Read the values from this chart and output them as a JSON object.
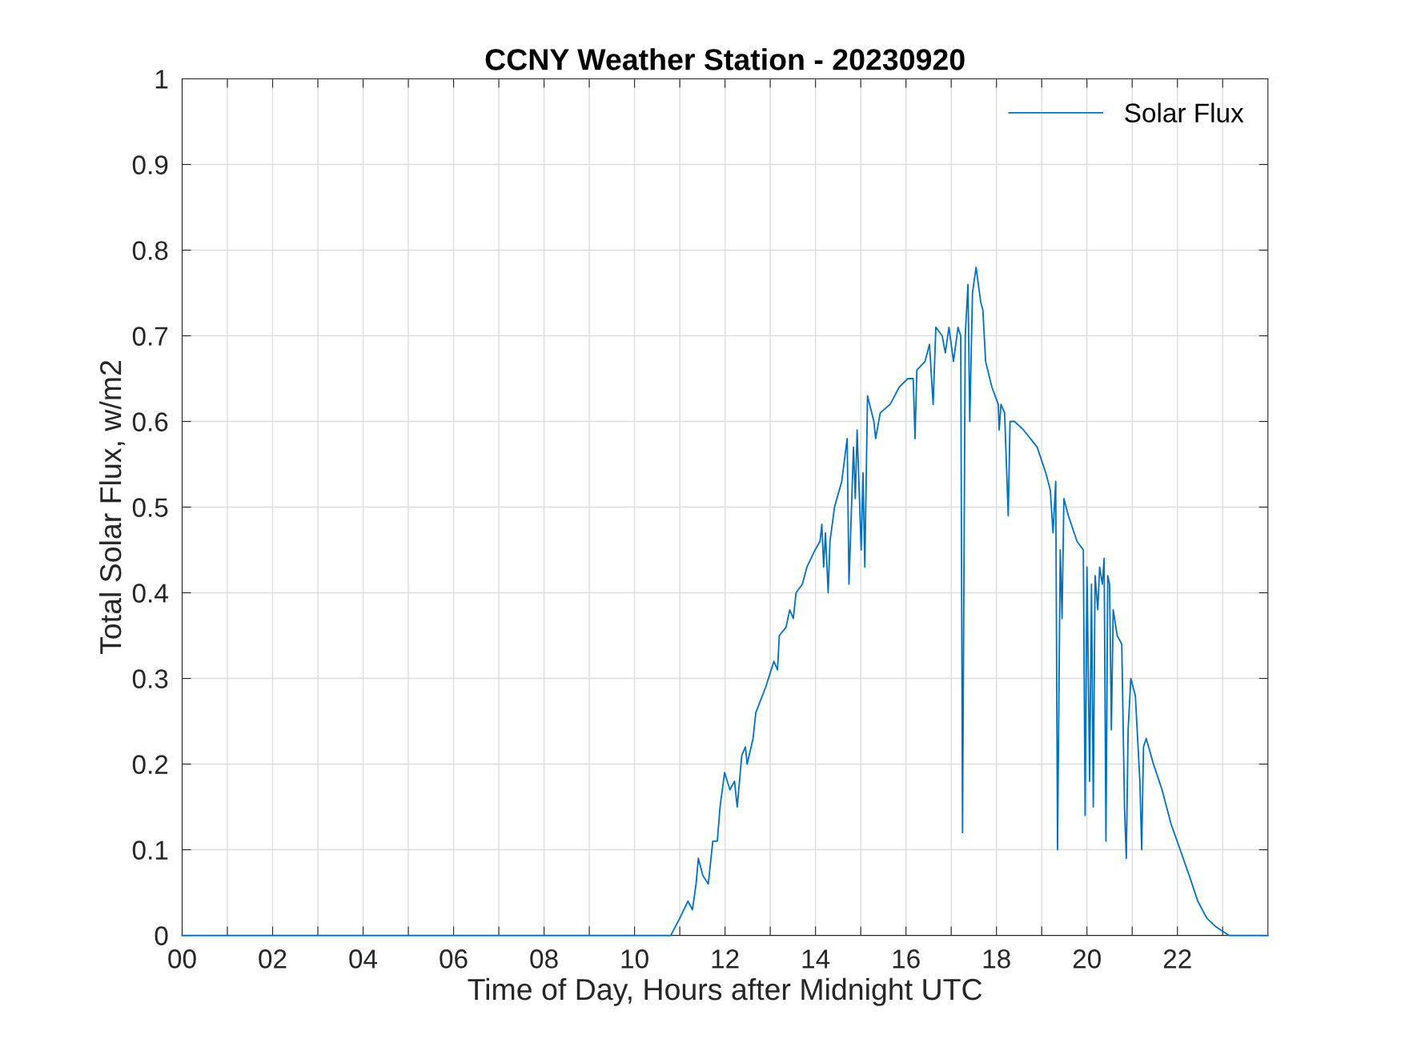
{
  "chart_data": {
    "type": "line",
    "title": "CCNY Weather Station - 20230920",
    "xlabel": "Time of Day, Hours after Midnight UTC",
    "ylabel": "Total Solar Flux, w/m2",
    "xlim": [
      0,
      24
    ],
    "ylim": [
      0,
      1
    ],
    "xticks": [
      {
        "value": 0,
        "label": "00"
      },
      {
        "value": 1,
        "label": null
      },
      {
        "value": 2,
        "label": "02"
      },
      {
        "value": 3,
        "label": null
      },
      {
        "value": 4,
        "label": "04"
      },
      {
        "value": 5,
        "label": null
      },
      {
        "value": 6,
        "label": "06"
      },
      {
        "value": 7,
        "label": null
      },
      {
        "value": 8,
        "label": "08"
      },
      {
        "value": 9,
        "label": null
      },
      {
        "value": 10,
        "label": "10"
      },
      {
        "value": 11,
        "label": null
      },
      {
        "value": 12,
        "label": "12"
      },
      {
        "value": 13,
        "label": null
      },
      {
        "value": 14,
        "label": "14"
      },
      {
        "value": 15,
        "label": null
      },
      {
        "value": 16,
        "label": "16"
      },
      {
        "value": 17,
        "label": null
      },
      {
        "value": 18,
        "label": "18"
      },
      {
        "value": 19,
        "label": null
      },
      {
        "value": 20,
        "label": "20"
      },
      {
        "value": 21,
        "label": null
      },
      {
        "value": 22,
        "label": "22"
      },
      {
        "value": 23,
        "label": null
      }
    ],
    "yticks": [
      0,
      0.1,
      0.2,
      0.3,
      0.4,
      0.5,
      0.6,
      0.7,
      0.8,
      0.9,
      1
    ],
    "grid": true,
    "legend": "top right",
    "line_style": "solid",
    "series": [
      {
        "name": "Solar Flux",
        "color": "#0072bd",
        "x": [
          0,
          10.48,
          10.8,
          11.0,
          11.18,
          11.28,
          11.36,
          11.41,
          11.51,
          11.63,
          11.73,
          11.83,
          11.89,
          11.99,
          12.11,
          12.21,
          12.27,
          12.37,
          12.45,
          12.49,
          12.62,
          12.68,
          12.9,
          13.08,
          13.16,
          13.2,
          13.35,
          13.43,
          13.51,
          13.57,
          13.71,
          13.81,
          13.99,
          14.1,
          14.14,
          14.18,
          14.22,
          14.28,
          14.32,
          14.42,
          14.58,
          14.7,
          14.74,
          14.84,
          14.88,
          14.92,
          15.01,
          15.05,
          15.09,
          15.15,
          15.29,
          15.33,
          15.43,
          15.65,
          15.85,
          16.04,
          16.16,
          16.2,
          16.24,
          16.42,
          16.52,
          16.6,
          16.66,
          16.8,
          16.87,
          16.95,
          17.05,
          17.15,
          17.21,
          17.25,
          17.31,
          17.37,
          17.41,
          17.47,
          17.55,
          17.65,
          17.7,
          17.76,
          17.9,
          18.04,
          18.06,
          18.1,
          18.18,
          18.26,
          18.3,
          18.4,
          18.6,
          18.9,
          19.09,
          19.19,
          19.25,
          19.31,
          19.35,
          19.41,
          19.45,
          19.49,
          19.59,
          19.78,
          19.92,
          19.96,
          20.0,
          20.06,
          20.1,
          20.14,
          20.18,
          20.24,
          20.28,
          20.34,
          20.38,
          20.42,
          20.46,
          20.5,
          20.54,
          20.58,
          20.67,
          20.77,
          20.83,
          20.87,
          20.91,
          20.97,
          21.07,
          21.17,
          21.21,
          21.25,
          21.31,
          21.47,
          21.66,
          21.86,
          22.06,
          22.26,
          22.45,
          22.65,
          22.85,
          23.14,
          24
        ],
        "values": [
          0,
          0,
          0.0,
          0.02,
          0.04,
          0.03,
          0.06,
          0.09,
          0.07,
          0.06,
          0.11,
          0.11,
          0.15,
          0.19,
          0.17,
          0.18,
          0.15,
          0.21,
          0.22,
          0.2,
          0.23,
          0.26,
          0.29,
          0.32,
          0.31,
          0.35,
          0.36,
          0.38,
          0.37,
          0.4,
          0.41,
          0.43,
          0.45,
          0.46,
          0.48,
          0.43,
          0.47,
          0.4,
          0.46,
          0.5,
          0.53,
          0.58,
          0.41,
          0.57,
          0.51,
          0.59,
          0.45,
          0.54,
          0.43,
          0.63,
          0.6,
          0.58,
          0.61,
          0.62,
          0.64,
          0.65,
          0.65,
          0.58,
          0.66,
          0.67,
          0.69,
          0.62,
          0.71,
          0.7,
          0.68,
          0.71,
          0.67,
          0.71,
          0.7,
          0.12,
          0.7,
          0.76,
          0.6,
          0.75,
          0.78,
          0.74,
          0.73,
          0.67,
          0.64,
          0.62,
          0.59,
          0.62,
          0.61,
          0.49,
          0.6,
          0.6,
          0.59,
          0.57,
          0.54,
          0.52,
          0.47,
          0.53,
          0.1,
          0.45,
          0.37,
          0.51,
          0.49,
          0.46,
          0.45,
          0.14,
          0.43,
          0.18,
          0.41,
          0.15,
          0.42,
          0.38,
          0.43,
          0.41,
          0.44,
          0.11,
          0.42,
          0.41,
          0.24,
          0.38,
          0.35,
          0.34,
          0.15,
          0.09,
          0.24,
          0.3,
          0.28,
          0.18,
          0.1,
          0.22,
          0.23,
          0.2,
          0.17,
          0.13,
          0.1,
          0.07,
          0.04,
          0.02,
          0.01,
          0,
          0
        ]
      }
    ]
  }
}
